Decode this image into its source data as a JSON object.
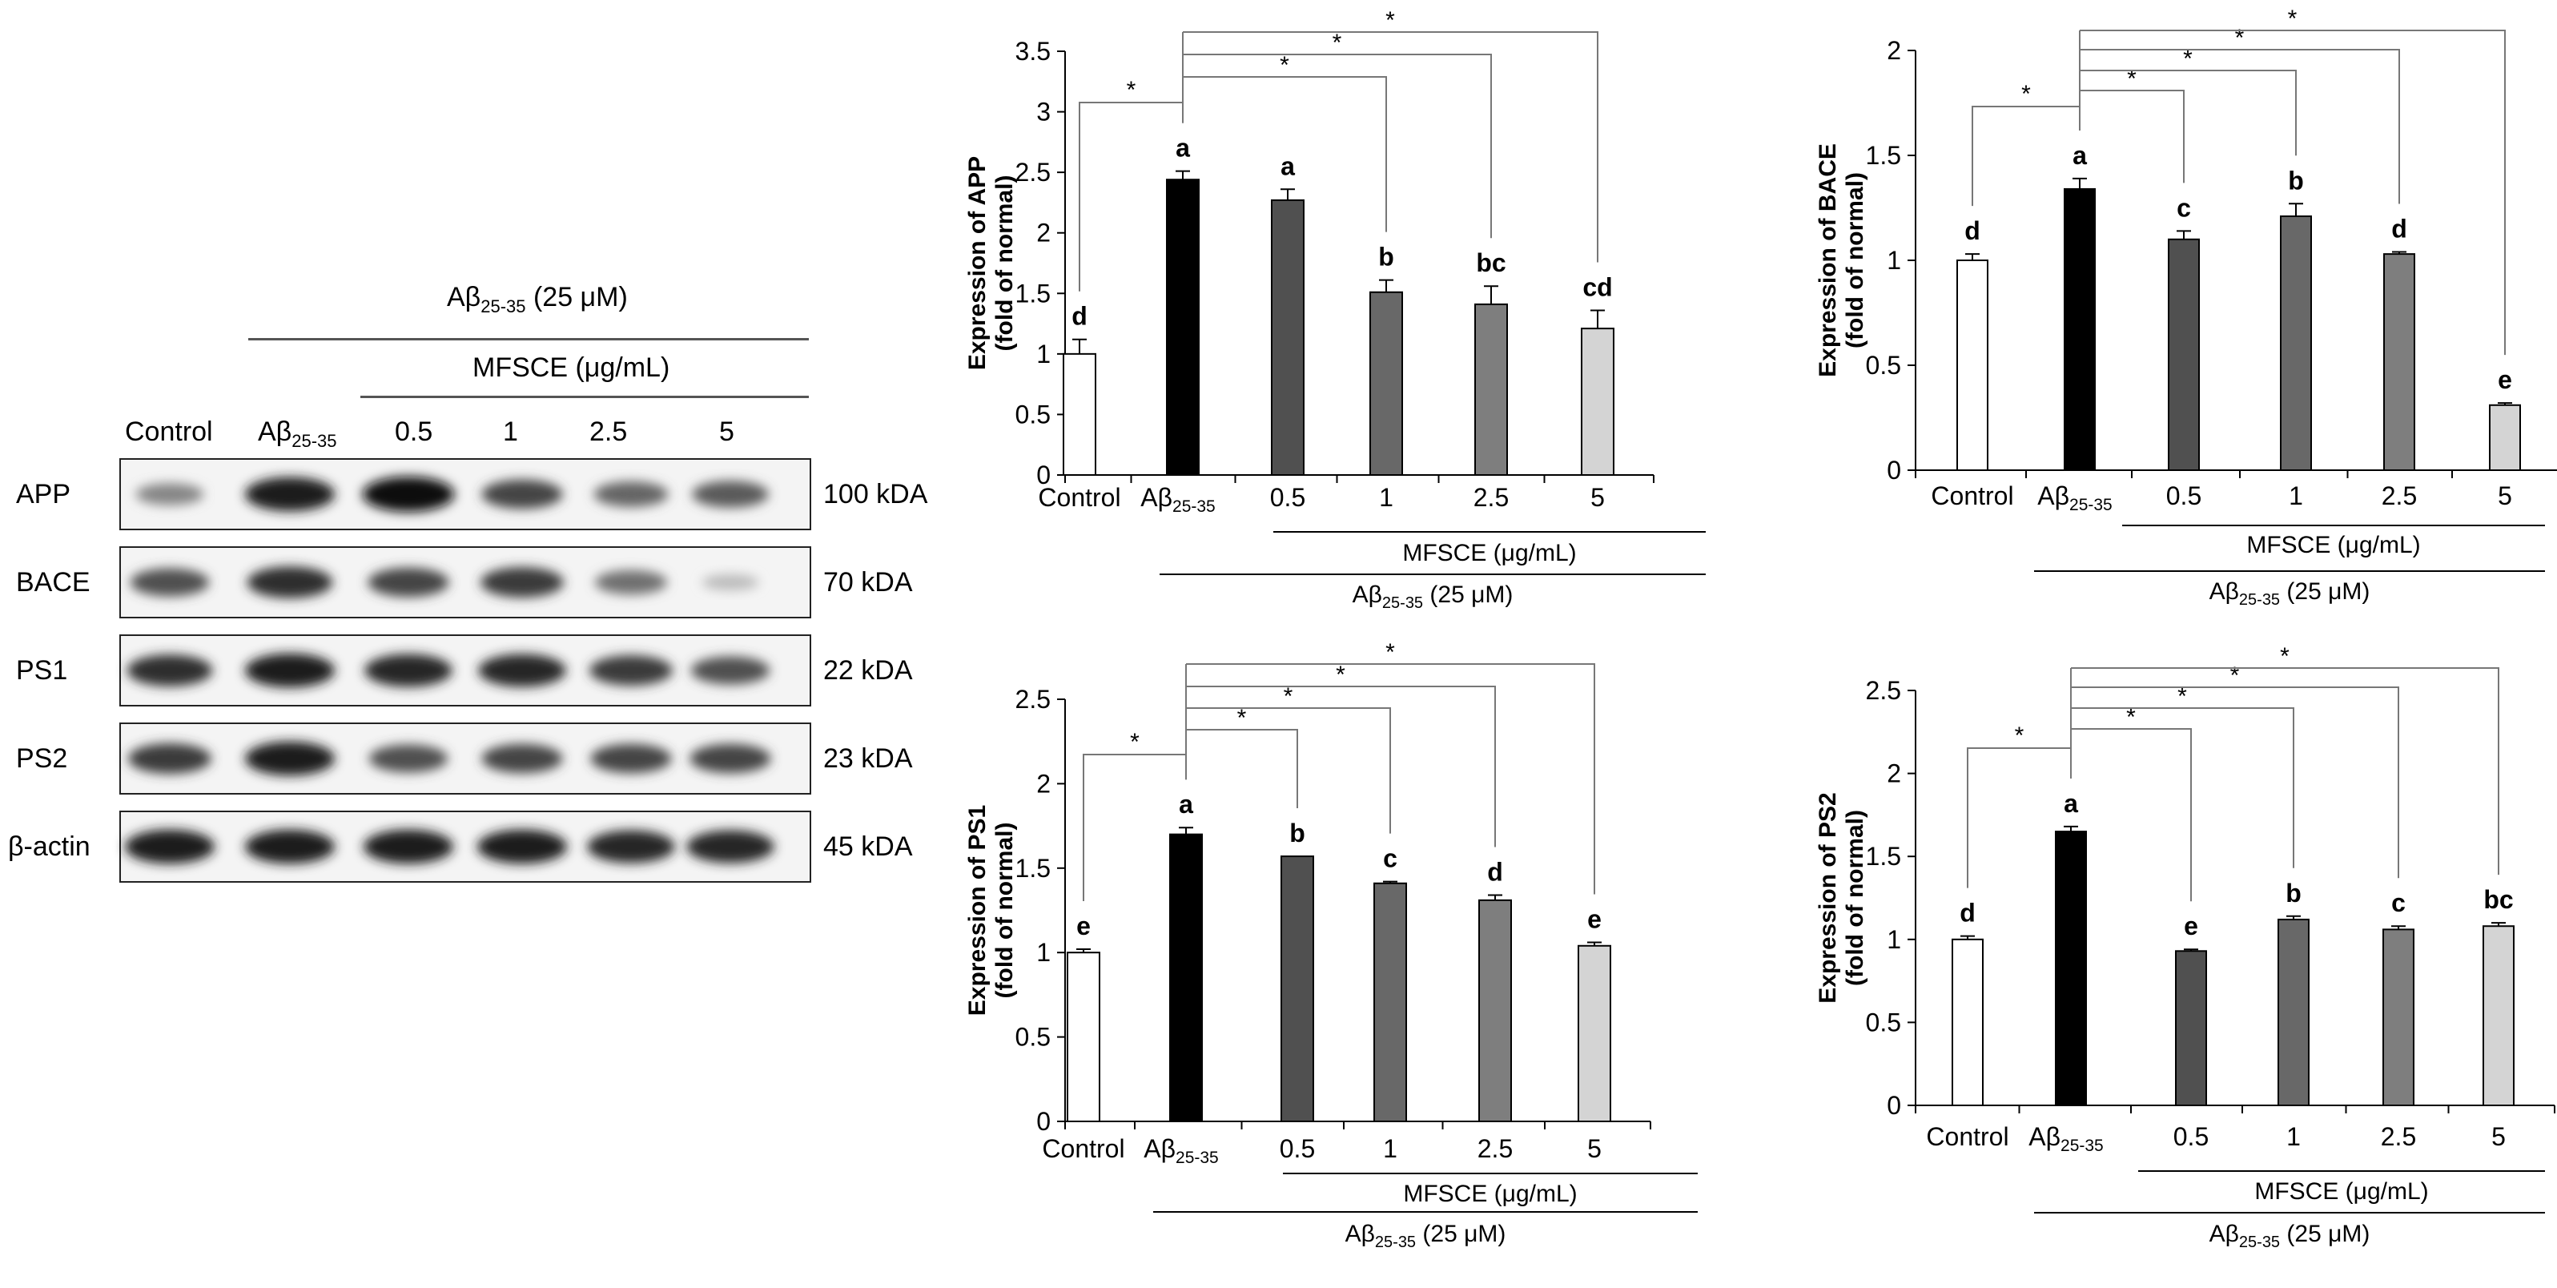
{
  "western_blot": {
    "ab_header": "Aβ25-35 (25 μM)",
    "ab_header_parts": {
      "pre": "Aβ",
      "sub": "25-35",
      "post": " (25 μM)"
    },
    "mfsce_header": "MFSCE (μg/mL)",
    "lanes": [
      {
        "label": "Control"
      },
      {
        "label": "Aβ25-35",
        "pre": "Aβ",
        "sub": "25-35"
      },
      {
        "label": "0.5"
      },
      {
        "label": "1"
      },
      {
        "label": "2.5"
      },
      {
        "label": "5"
      }
    ],
    "rows": [
      {
        "protein": "APP",
        "size": "100 kDA",
        "band_intensity": [
          0.45,
          0.95,
          1.0,
          0.75,
          0.6,
          0.65
        ]
      },
      {
        "protein": "BACE",
        "size": "70 kDA",
        "band_intensity": [
          0.7,
          0.85,
          0.75,
          0.8,
          0.55,
          0.2
        ]
      },
      {
        "protein": "PS1",
        "size": "22 kDA",
        "band_intensity": [
          0.85,
          0.95,
          0.9,
          0.9,
          0.8,
          0.7
        ]
      },
      {
        "protein": "PS2",
        "size": "23 kDA",
        "band_intensity": [
          0.8,
          0.95,
          0.7,
          0.75,
          0.75,
          0.75
        ]
      },
      {
        "protein": "β-actin",
        "size": "45 kDA",
        "band_intensity": [
          0.95,
          0.95,
          0.95,
          0.95,
          0.9,
          0.9
        ]
      }
    ]
  },
  "chart_data": [
    {
      "type": "bar",
      "id": "app",
      "ylabel": "Expression of APP",
      "ylabel2": "(fold of normal)",
      "categories": [
        "Control",
        "Aβ25-35",
        "0.5",
        "1",
        "2.5",
        "5"
      ],
      "values": [
        1.0,
        2.44,
        2.27,
        1.51,
        1.41,
        1.21
      ],
      "errors": [
        0.12,
        0.07,
        0.09,
        0.1,
        0.15,
        0.15
      ],
      "letters": [
        "d",
        "a",
        "a",
        "b",
        "bc",
        "cd"
      ],
      "colors": [
        "#ffffff",
        "#000000",
        "#505050",
        "#686868",
        "#7e7e7e",
        "#d4d4d4"
      ],
      "ylim": [
        0,
        3.5
      ],
      "yticks": [
        "0",
        "0.5",
        "1",
        "1.5",
        "2",
        "2.5",
        "3",
        "3.5"
      ],
      "significance_marker": "*",
      "mfsce_label": "MFSCE (μg/mL)",
      "ab_label": "Aβ25-35 (25 μM)"
    },
    {
      "type": "bar",
      "id": "bace",
      "ylabel": "Expression of BACE",
      "ylabel2": "(fold of normal)",
      "categories": [
        "Control",
        "Aβ25-35",
        "0.5",
        "1",
        "2.5",
        "5"
      ],
      "values": [
        1.0,
        1.34,
        1.1,
        1.21,
        1.03,
        0.31
      ],
      "errors": [
        0.03,
        0.05,
        0.04,
        0.06,
        0.01,
        0.01
      ],
      "letters": [
        "d",
        "a",
        "c",
        "b",
        "d",
        "e"
      ],
      "colors": [
        "#ffffff",
        "#000000",
        "#505050",
        "#686868",
        "#7e7e7e",
        "#d4d4d4"
      ],
      "ylim": [
        0,
        2
      ],
      "yticks": [
        "0",
        "0.5",
        "1",
        "1.5",
        "2"
      ],
      "significance_marker": "*",
      "mfsce_label": "MFSCE (μg/mL)",
      "ab_label": "Aβ25-35 (25 μM)"
    },
    {
      "type": "bar",
      "id": "ps1",
      "ylabel": "Expression of PS1",
      "ylabel2": "(fold of normal)",
      "categories": [
        "Control",
        "Aβ25-35",
        "0.5",
        "1",
        "2.5",
        "5"
      ],
      "values": [
        1.0,
        1.7,
        1.57,
        1.41,
        1.31,
        1.04
      ],
      "errors": [
        0.02,
        0.04,
        0.0,
        0.01,
        0.03,
        0.02
      ],
      "letters": [
        "e",
        "a",
        "b",
        "c",
        "d",
        "e"
      ],
      "colors": [
        "#ffffff",
        "#000000",
        "#505050",
        "#686868",
        "#7e7e7e",
        "#d4d4d4"
      ],
      "ylim": [
        0,
        2.5
      ],
      "yticks": [
        "0",
        "0.5",
        "1",
        "1.5",
        "2",
        "2.5"
      ],
      "significance_marker": "*",
      "mfsce_label": "MFSCE (μg/mL)",
      "ab_label": "Aβ25-35 (25 μM)"
    },
    {
      "type": "bar",
      "id": "ps2",
      "ylabel": "Expression of PS2",
      "ylabel2": "(fold of normal)",
      "categories": [
        "Control",
        "Aβ25-35",
        "0.5",
        "1",
        "2.5",
        "5"
      ],
      "values": [
        1.0,
        1.65,
        0.93,
        1.12,
        1.06,
        1.08
      ],
      "errors": [
        0.02,
        0.03,
        0.01,
        0.02,
        0.02,
        0.02
      ],
      "letters": [
        "d",
        "a",
        "e",
        "b",
        "c",
        "bc"
      ],
      "colors": [
        "#ffffff",
        "#000000",
        "#505050",
        "#686868",
        "#7e7e7e",
        "#d4d4d4"
      ],
      "ylim": [
        0,
        2.5
      ],
      "yticks": [
        "0",
        "0.5",
        "1",
        "1.5",
        "2",
        "2.5"
      ],
      "significance_marker": "*",
      "mfsce_label": "MFSCE (μg/mL)",
      "ab_label": "Aβ25-35 (25 μM)"
    }
  ]
}
